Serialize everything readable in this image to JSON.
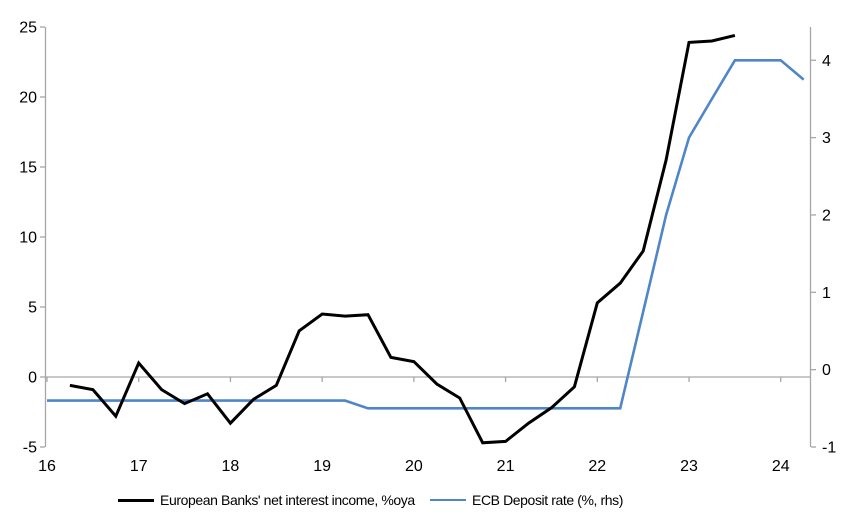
{
  "chart_data": {
    "type": "line",
    "title": "",
    "legend_position": "bottom",
    "grid": {
      "zero_line": true,
      "other_gridlines": false
    },
    "x_axis": {
      "ticks": [
        16,
        17,
        18,
        19,
        20,
        21,
        22,
        23,
        24
      ],
      "range": [
        16,
        24.33
      ],
      "tick_side": "on-zero-line-labels-low"
    },
    "left_axis": {
      "ticks": [
        -5,
        0,
        5,
        10,
        15,
        20,
        25
      ],
      "range": [
        -5,
        25
      ]
    },
    "right_axis": {
      "ticks": [
        -1,
        0,
        1,
        2,
        3,
        4
      ],
      "range": [
        -1,
        4.43
      ]
    },
    "axis_color": "#a6a6a6",
    "series": [
      {
        "name": "European Banks' net interest income, %oya",
        "axis": "left",
        "color": "#000000",
        "width": 3,
        "x": [
          16.25,
          16.5,
          16.75,
          17.0,
          17.25,
          17.5,
          17.75,
          18.0,
          18.25,
          18.5,
          18.75,
          19.0,
          19.25,
          19.5,
          19.75,
          20.0,
          20.25,
          20.5,
          20.75,
          21.0,
          21.25,
          21.5,
          21.75,
          22.0,
          22.25,
          22.5,
          22.75,
          23.0,
          23.25,
          23.5
        ],
        "values": [
          -0.6,
          -0.9,
          -2.8,
          1.0,
          -0.9,
          -1.9,
          -1.2,
          -3.3,
          -1.6,
          -0.6,
          3.3,
          4.5,
          4.35,
          4.45,
          1.4,
          1.1,
          -0.5,
          -1.5,
          -4.7,
          -4.6,
          -3.3,
          -2.2,
          -0.7,
          5.3,
          6.7,
          9.0,
          15.5,
          23.9,
          24.0,
          24.4
        ]
      },
      {
        "name": "ECB Deposit rate (%, rhs)",
        "axis": "right",
        "color": "#4f86c8",
        "width": 2.6,
        "x": [
          16.0,
          19.25,
          19.5,
          22.25,
          22.5,
          22.75,
          23.0,
          23.25,
          23.5,
          24.0,
          24.25
        ],
        "values": [
          -0.4,
          -0.4,
          -0.5,
          -0.5,
          0.75,
          2.0,
          3.0,
          3.5,
          4.0,
          4.0,
          3.75
        ]
      }
    ]
  }
}
